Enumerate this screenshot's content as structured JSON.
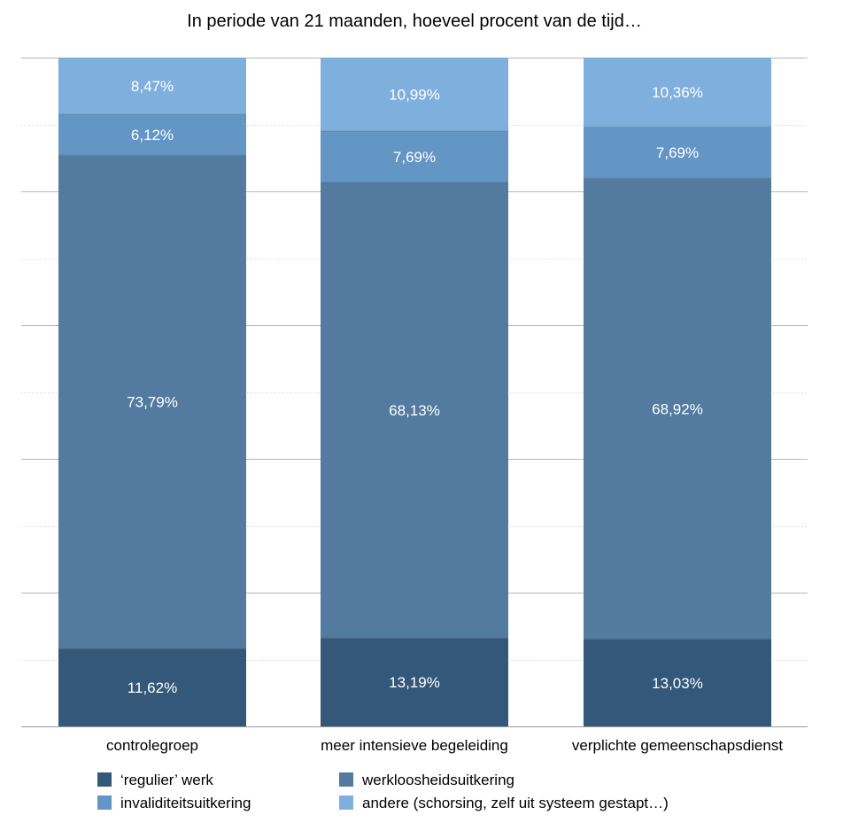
{
  "chart_data": {
    "type": "bar",
    "stacked": true,
    "title": "In periode van 21 maanden, hoeveel procent van de tijd…",
    "categories": [
      "controlegroep",
      "meer intensieve begeleiding",
      "verplichte gemeenschapsdienst"
    ],
    "ylim": [
      0,
      100
    ],
    "grid": true,
    "legend_placement": "bottom",
    "series": [
      {
        "name": "‘regulier’ werk",
        "color": "#34587a",
        "values": [
          11.62,
          13.19,
          13.03
        ],
        "labels": [
          "11,62%",
          "13,19%",
          "13,03%"
        ]
      },
      {
        "name": "werkloosheidsuitkering",
        "color": "#537ba0",
        "values": [
          73.79,
          68.13,
          68.92
        ],
        "labels": [
          "73,79%",
          "68,13%",
          "68,92%"
        ]
      },
      {
        "name": "invaliditeitsuitkering",
        "color": "#6396c4",
        "values": [
          6.12,
          7.69,
          7.69
        ],
        "labels": [
          "6,12%",
          "7,69%",
          "7,69%"
        ]
      },
      {
        "name": "andere (schorsing, zelf uit systeem gestapt…)",
        "color": "#7fb0dd",
        "values": [
          8.47,
          10.99,
          10.36
        ],
        "labels": [
          "8,47%",
          "10,99%",
          "10,36%"
        ]
      }
    ]
  }
}
